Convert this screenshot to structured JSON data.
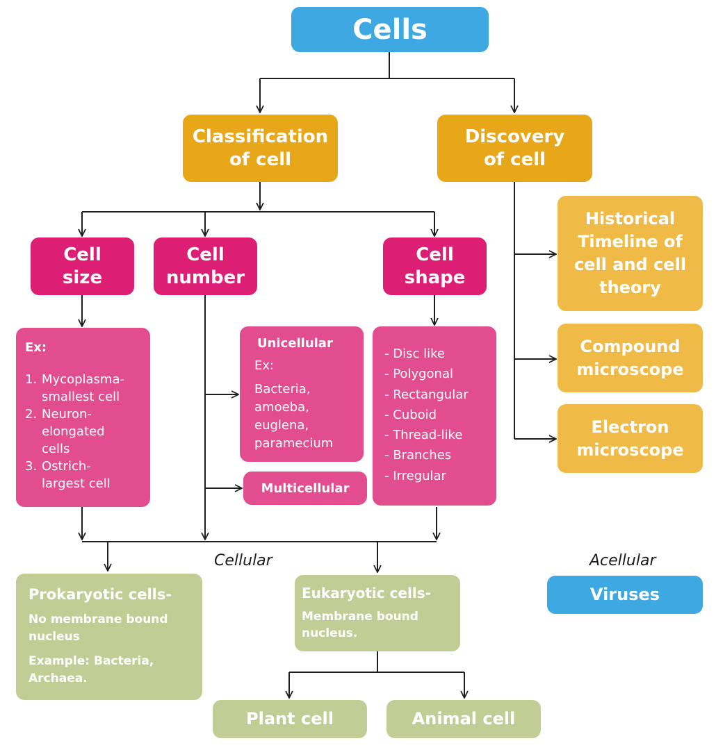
{
  "root": {
    "label": "Cells"
  },
  "classification": {
    "label_line1": "Classification",
    "label_line2": "of cell"
  },
  "discovery": {
    "label_line1": "Discovery",
    "label_line2": "of cell"
  },
  "cell_size": {
    "label_line1": "Cell",
    "label_line2": "size",
    "heading": "Ex:",
    "items": [
      {
        "num": "1.",
        "line1": "Mycoplasma-",
        "line2": "smallest cell"
      },
      {
        "num": "2.",
        "line1": "Neuron-",
        "line2": "elongated",
        "line3": "cells"
      },
      {
        "num": "3.",
        "line1": "Ostrich-",
        "line2": "largest cell"
      }
    ]
  },
  "cell_number": {
    "label_line1": "Cell",
    "label_line2": "number",
    "unicellular": {
      "title": "Unicellular",
      "ex": "Ex:",
      "lines": [
        "Bacteria,",
        "amoeba,",
        "euglena,",
        "paramecium"
      ]
    },
    "multicellular": {
      "title": "Multicellular"
    }
  },
  "cell_shape": {
    "label_line1": "Cell",
    "label_line2": "shape",
    "items": [
      "- Disc like",
      "- Polygonal",
      "- Rectangular",
      "- Cuboid",
      "- Thread-like",
      "- Branches",
      "- Irregular"
    ]
  },
  "discovery_items": {
    "historical": [
      "Historical",
      "Timeline of",
      "cell and cell",
      "theory"
    ],
    "compound": [
      "Compound",
      "microscope"
    ],
    "electron": [
      "Electron",
      "microscope"
    ]
  },
  "labels": {
    "cellular": "Cellular",
    "acellular": "Acellular"
  },
  "prokaryotic": {
    "title": "Prokaryotic cells-",
    "desc_line1": "No membrane bound",
    "desc_line2": "nucleus",
    "ex_line1": "Example: Bacteria,",
    "ex_line2": "Archaea."
  },
  "eukaryotic": {
    "title": "Eukaryotic cells-",
    "desc_line1": "Membrane bound",
    "desc_line2": "nucleus."
  },
  "viruses": {
    "label": "Viruses"
  },
  "plant": {
    "label": "Plant cell"
  },
  "animal": {
    "label": "Animal cell"
  },
  "colors": {
    "blue": "#3da8e1",
    "gold": "#e7a719",
    "light_gold": "#efba46",
    "magenta": "#dc1e74",
    "pink": "#e14d8e",
    "green": "#c1cd94",
    "line": "#1e1e1e"
  }
}
